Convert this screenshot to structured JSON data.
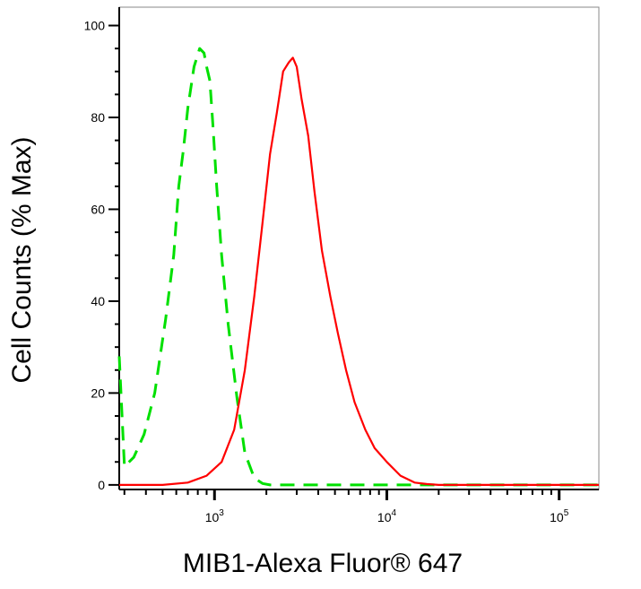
{
  "chart_data": {
    "type": "line",
    "title": "",
    "xlabel": "MIB1-Alexa Fluor® 647",
    "ylabel": "Cell Counts (% Max)",
    "x_scale": "log",
    "xlim": [
      280,
      170000
    ],
    "ylim": [
      -1,
      104
    ],
    "yticks": [
      "0",
      "20",
      "40",
      "60",
      "80",
      "100"
    ],
    "xticks": [
      {
        "base": "10",
        "exp": "3"
      },
      {
        "base": "10",
        "exp": "4"
      },
      {
        "base": "10",
        "exp": "5"
      }
    ],
    "grid": false,
    "legend": "none",
    "series": [
      {
        "style": "dashed",
        "color": "#00e000",
        "x": [
          280,
          300,
          340,
          390,
          450,
          520,
          580,
          620,
          660,
          700,
          760,
          820,
          870,
          900,
          940,
          980,
          1030,
          1100,
          1200,
          1350,
          1500,
          1700,
          1900,
          2100,
          2500,
          3000,
          5000,
          10000,
          20000,
          50000,
          100000,
          170000
        ],
        "y": [
          28,
          4,
          6,
          11,
          20,
          36,
          50,
          65,
          73,
          82,
          91,
          95,
          94,
          91,
          88,
          78,
          65,
          50,
          35,
          19,
          7,
          1.5,
          0.3,
          0,
          0,
          0,
          0,
          0,
          0,
          0,
          0,
          0
        ]
      },
      {
        "style": "solid",
        "color": "#ff0000",
        "x": [
          280,
          500,
          700,
          900,
          1100,
          1300,
          1500,
          1700,
          1900,
          2100,
          2300,
          2500,
          2700,
          2850,
          3000,
          3200,
          3500,
          3800,
          4200,
          4700,
          5200,
          5800,
          6500,
          7500,
          8500,
          10000,
          12000,
          14500,
          17000,
          20000,
          30000,
          60000,
          170000
        ],
        "y": [
          0,
          0,
          0.5,
          2,
          5,
          12,
          25,
          41,
          57,
          72,
          81,
          90,
          92,
          93,
          91,
          84,
          76,
          64,
          51,
          41,
          33,
          25,
          18,
          12,
          8,
          5,
          2,
          0.5,
          0.2,
          0,
          0,
          0,
          0
        ]
      }
    ]
  }
}
